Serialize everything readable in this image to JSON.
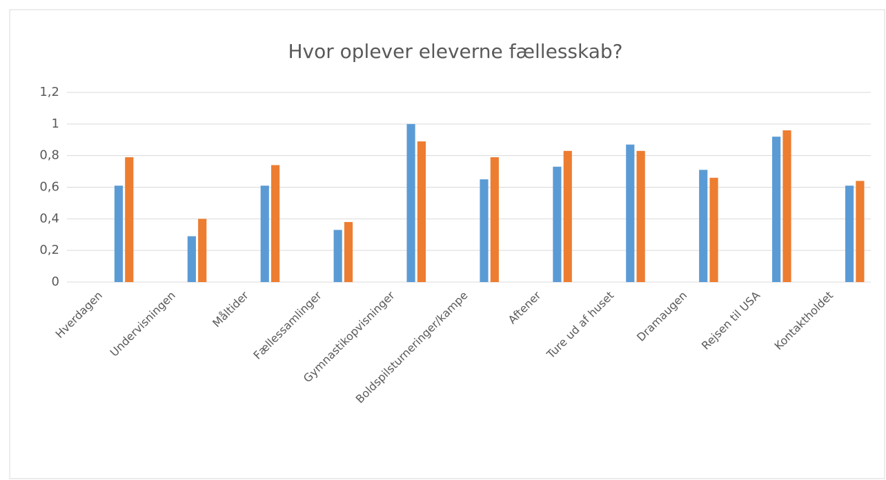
{
  "chart_data": {
    "type": "bar",
    "title": "Hvor oplever eleverne fællesskab?",
    "categories": [
      "Hverdagen",
      "Undervisningen",
      "Måltider",
      "Fællessamlinger",
      "Gymnastikopvisninger",
      "Boldspilsturneringer/kampe",
      "Aftener",
      "Ture ud af huset",
      "Dramaugen",
      "Rejsen til USA",
      "Kontaktholdet"
    ],
    "series": [
      {
        "color": "#5b9bd5",
        "values": [
          0.61,
          0.29,
          0.61,
          0.33,
          1.0,
          0.65,
          0.73,
          0.87,
          0.71,
          0.92,
          0.61
        ]
      },
      {
        "color": "#ed7d31",
        "values": [
          0.79,
          0.4,
          0.74,
          0.38,
          0.89,
          0.79,
          0.83,
          0.83,
          0.66,
          0.96,
          0.64
        ]
      }
    ],
    "ylim": [
      0,
      1.2
    ],
    "yticks": [
      0,
      {
        "value": 0.2,
        "label": "0,2"
      },
      {
        "value": 0.4,
        "label": "0,4"
      },
      {
        "value": 0.6,
        "label": "0,6"
      },
      {
        "value": 0.8,
        "label": "0,8"
      },
      1,
      {
        "value": 1.2,
        "label": "1,2"
      }
    ],
    "grid": true
  }
}
